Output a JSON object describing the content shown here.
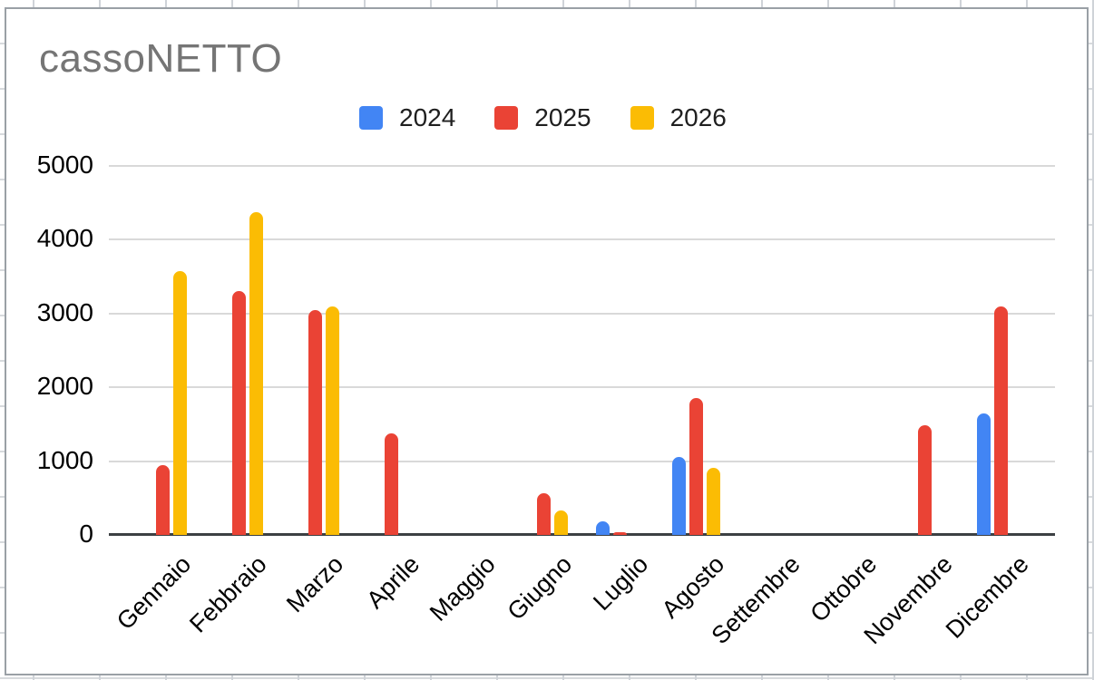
{
  "chart_data": {
    "type": "bar",
    "title": "cassoNETTO",
    "categories": [
      "Gennaio",
      "Febbraio",
      "Marzo",
      "Aprile",
      "Maggio",
      "Giugno",
      "Luglio",
      "Agosto",
      "Settembre",
      "Ottobre",
      "Novembre",
      "Dicembre"
    ],
    "series": [
      {
        "name": "2024",
        "color": "#4285F4",
        "values": [
          0,
          0,
          0,
          0,
          0,
          0,
          180,
          1060,
          0,
          0,
          0,
          1650
        ]
      },
      {
        "name": "2025",
        "color": "#EA4335",
        "values": [
          940,
          3310,
          3050,
          1370,
          0,
          560,
          40,
          1850,
          0,
          0,
          1490,
          3100
        ]
      },
      {
        "name": "2026",
        "color": "#FBBC04",
        "values": [
          3580,
          4370,
          3100,
          0,
          0,
          330,
          0,
          910,
          0,
          0,
          0,
          0
        ]
      }
    ],
    "ylim": [
      0,
      5000
    ],
    "y_ticks": [
      0,
      1000,
      2000,
      3000,
      4000,
      5000
    ],
    "xlabel": "",
    "ylabel": "",
    "legend_position": "top",
    "grid": "horizontal"
  },
  "colors": {
    "title_text": "#757575",
    "axis_text": "#000000",
    "gridline": "#d9d9d9",
    "axis_baseline": "#3c4043",
    "chart_border": "#9aa0a6",
    "sheet_gridline": "#d0d3d6"
  }
}
